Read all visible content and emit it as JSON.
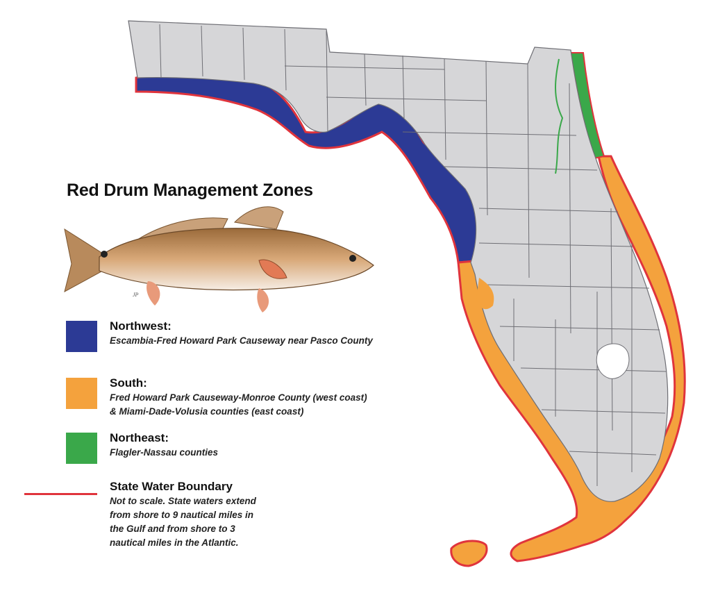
{
  "title": "Red Drum Management Zones",
  "zones": [
    {
      "name": "Northwest:",
      "description": [
        "Escambia-Fred Howard Park Causeway near Pasco County"
      ],
      "color": "#2c3a95"
    },
    {
      "name": "South:",
      "description": [
        "Fred Howard Park Causeway-Monroe County (west coast)",
        "& Miami-Dade-Volusia counties (east coast)"
      ],
      "color": "#f4a23d"
    },
    {
      "name": "Northeast:",
      "description": [
        "Flagler-Nassau counties"
      ],
      "color": "#3aa84a"
    }
  ],
  "boundary": {
    "label": "State Water Boundary",
    "note": [
      "Not to scale. State waters extend",
      "from shore to 9 nautical miles in",
      "the Gulf and from shore to 3",
      "nautical miles in the Atlantic."
    ],
    "color": "#e0343c"
  },
  "colors": {
    "land": "#d6d6d8",
    "county_lines": "#6e6e74",
    "lake": "#ffffff"
  },
  "illustration": "red-drum-fish",
  "signature": "JP"
}
